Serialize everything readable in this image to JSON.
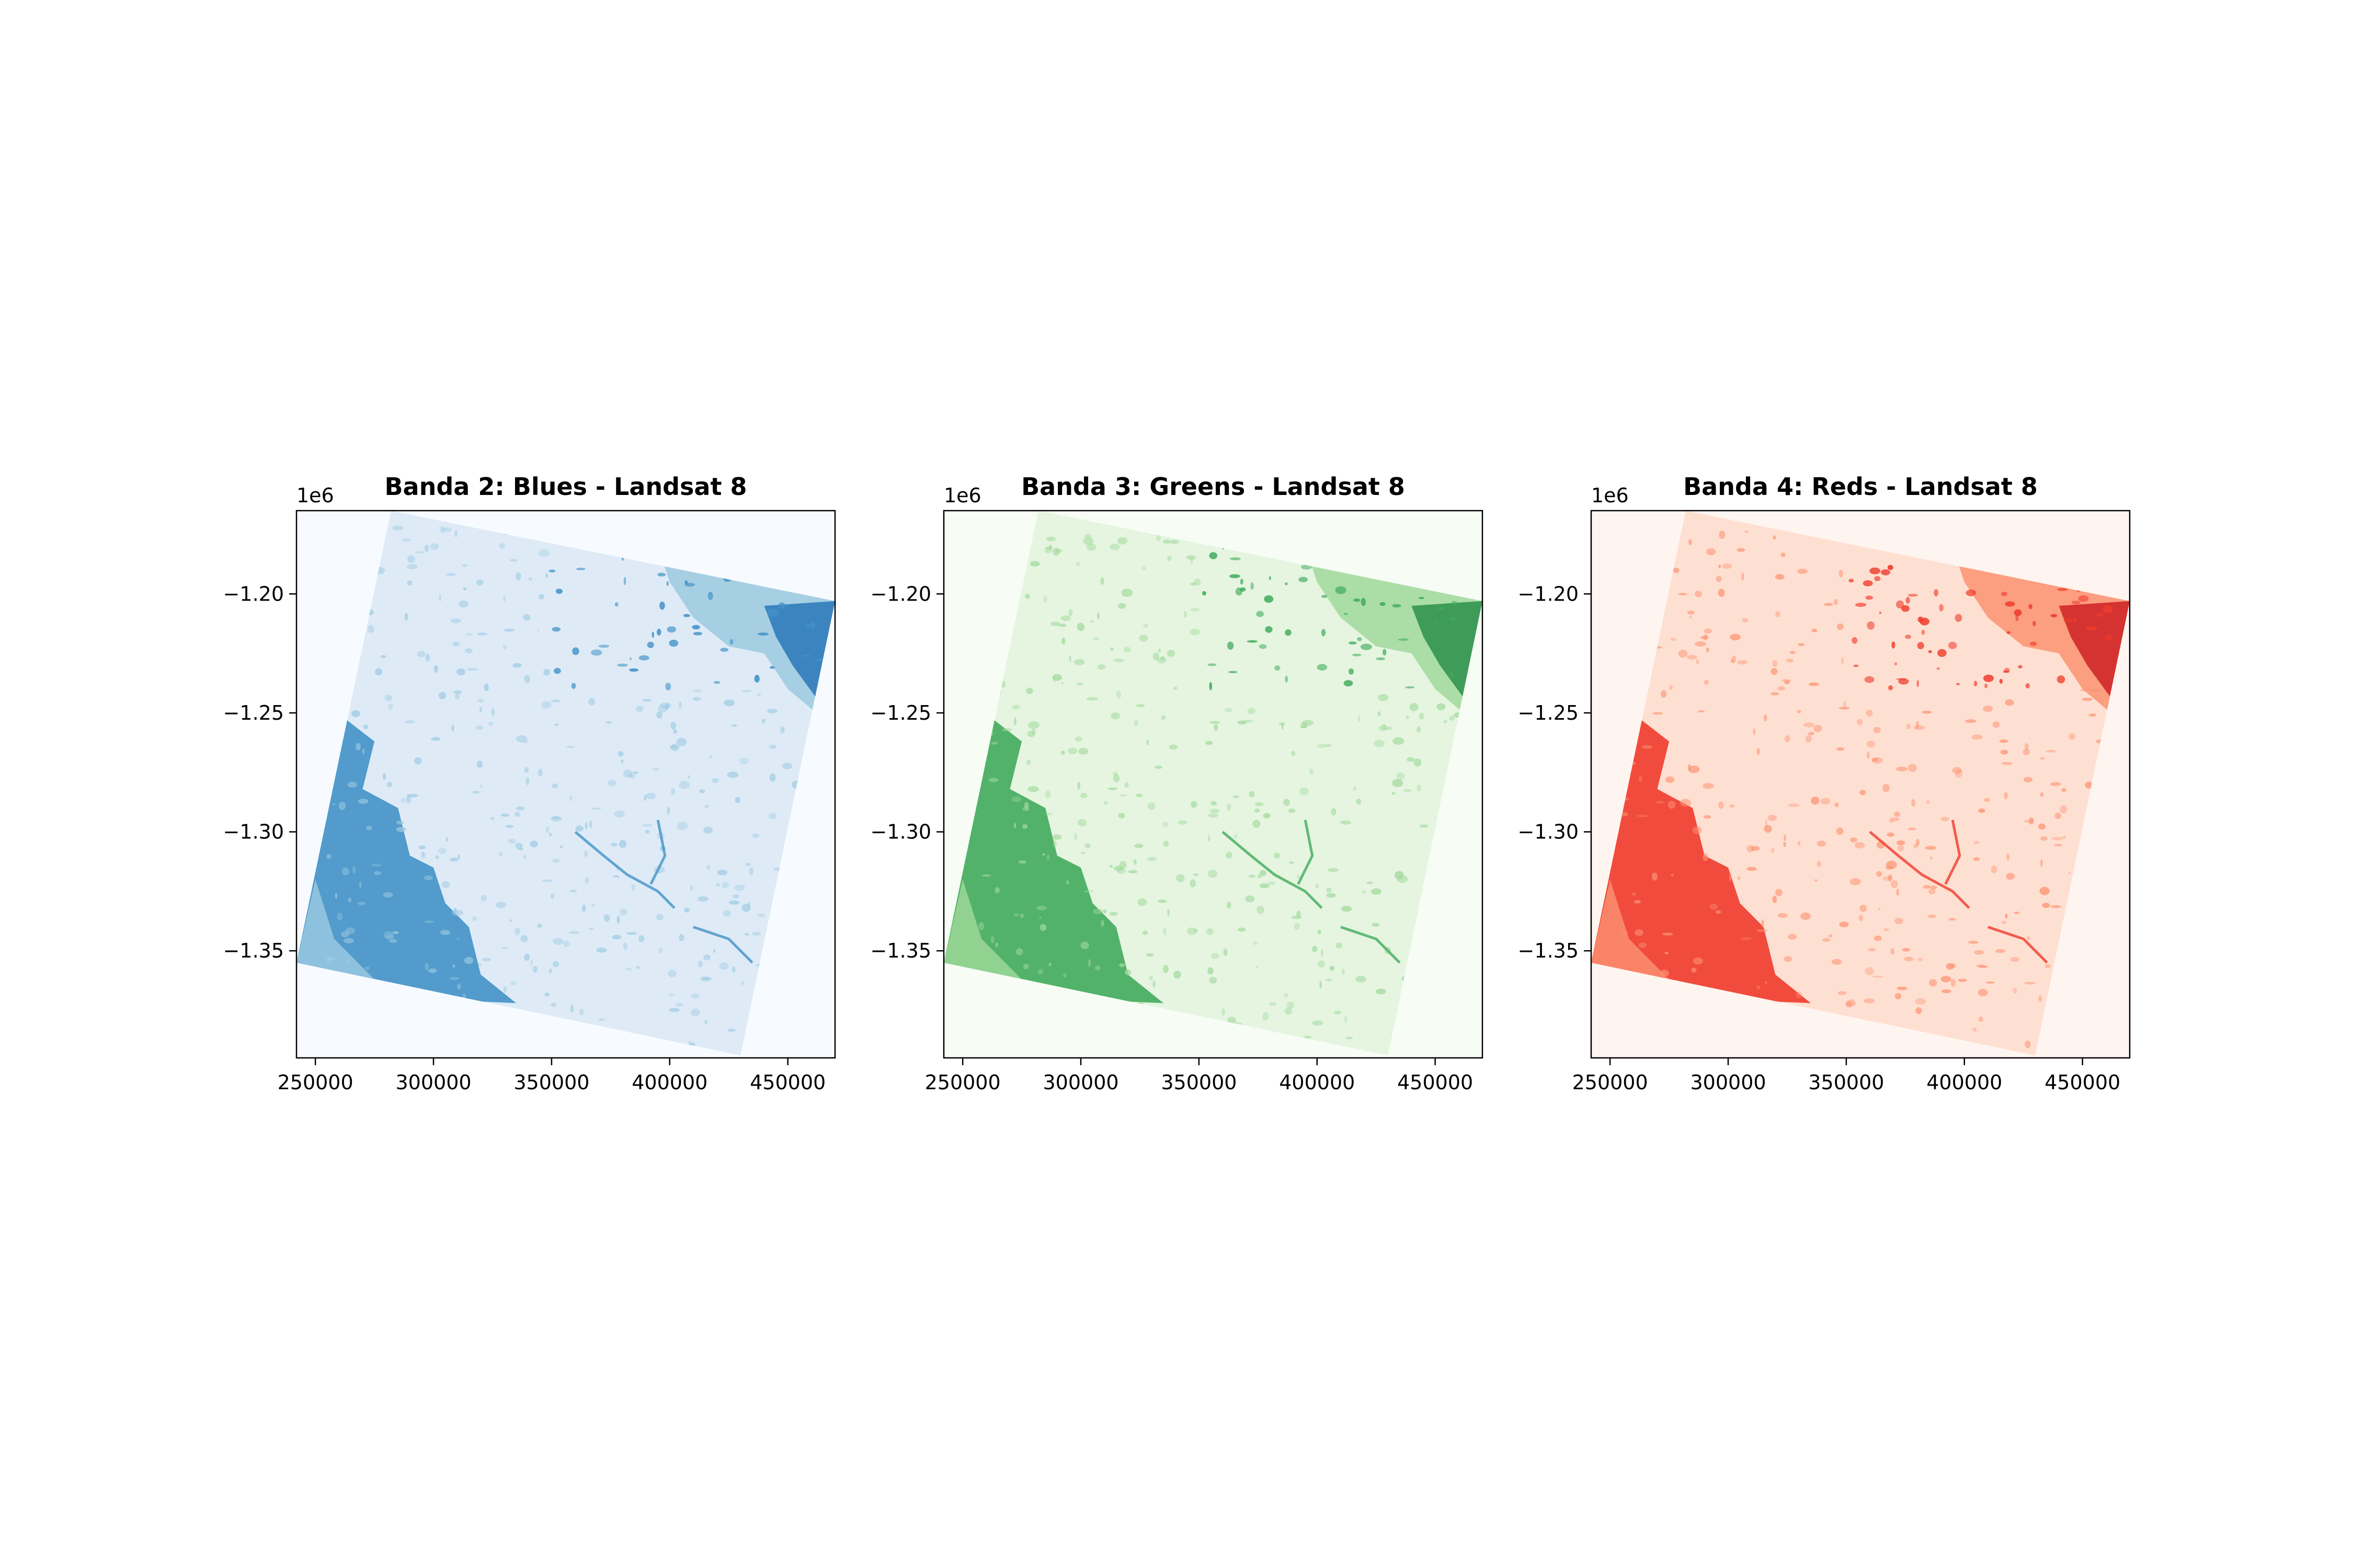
{
  "chart_data": [
    {
      "type": "heatmap",
      "title": "Banda 2: Blues - Landsat 8",
      "colormap": "Blues",
      "colors": {
        "background": "#f7fbff",
        "light": "#deebf7",
        "mid": "#9ecae1",
        "dark": "#4292c6",
        "darkest": "#2171b5"
      },
      "xlim": [
        242000,
        470000
      ],
      "ylim": [
        -1395000,
        -1165000
      ],
      "x_ticks": [
        250000,
        300000,
        350000,
        400000,
        450000
      ],
      "x_tick_labels": [
        "250000",
        "300000",
        "350000",
        "400000",
        "450000"
      ],
      "y_ticks": [
        -1200000,
        -1250000,
        -1300000,
        -1350000
      ],
      "y_tick_labels": [
        "−1.20",
        "−1.25",
        "−1.30",
        "−1.35"
      ],
      "y_offset_label": "1e6",
      "grid": false,
      "scene_corners": [
        [
          282000,
          -1165000
        ],
        [
          470000,
          -1203000
        ],
        [
          430000,
          -1394000
        ],
        [
          242000,
          -1355000
        ]
      ]
    },
    {
      "type": "heatmap",
      "title": "Banda 3: Greens - Landsat 8",
      "colormap": "Greens",
      "colors": {
        "background": "#f7fcf5",
        "light": "#e5f5e0",
        "mid": "#a1d99b",
        "dark": "#41ab5d",
        "darkest": "#238b45"
      },
      "xlim": [
        242000,
        470000
      ],
      "ylim": [
        -1395000,
        -1165000
      ],
      "x_ticks": [
        250000,
        300000,
        350000,
        400000,
        450000
      ],
      "x_tick_labels": [
        "250000",
        "300000",
        "350000",
        "400000",
        "450000"
      ],
      "y_ticks": [
        -1200000,
        -1250000,
        -1300000,
        -1350000
      ],
      "y_tick_labels": [
        "−1.20",
        "−1.25",
        "−1.30",
        "−1.35"
      ],
      "y_offset_label": "1e6",
      "grid": false,
      "scene_corners": [
        [
          282000,
          -1165000
        ],
        [
          470000,
          -1203000
        ],
        [
          430000,
          -1394000
        ],
        [
          242000,
          -1355000
        ]
      ]
    },
    {
      "type": "heatmap",
      "title": "Banda 4: Reds - Landsat 8",
      "colormap": "Reds",
      "colors": {
        "background": "#fff5f0",
        "light": "#fee0d2",
        "mid": "#fc9272",
        "dark": "#ef3b2c",
        "darkest": "#cb181d"
      },
      "xlim": [
        242000,
        470000
      ],
      "ylim": [
        -1395000,
        -1165000
      ],
      "x_ticks": [
        250000,
        300000,
        350000,
        400000,
        450000
      ],
      "x_tick_labels": [
        "250000",
        "300000",
        "350000",
        "400000",
        "450000"
      ],
      "y_ticks": [
        -1200000,
        -1250000,
        -1300000,
        -1350000
      ],
      "y_tick_labels": [
        "−1.20",
        "−1.25",
        "−1.30",
        "−1.35"
      ],
      "y_offset_label": "1e6",
      "grid": false,
      "scene_corners": [
        [
          282000,
          -1165000
        ],
        [
          470000,
          -1203000
        ],
        [
          430000,
          -1394000
        ],
        [
          242000,
          -1355000
        ]
      ]
    }
  ]
}
